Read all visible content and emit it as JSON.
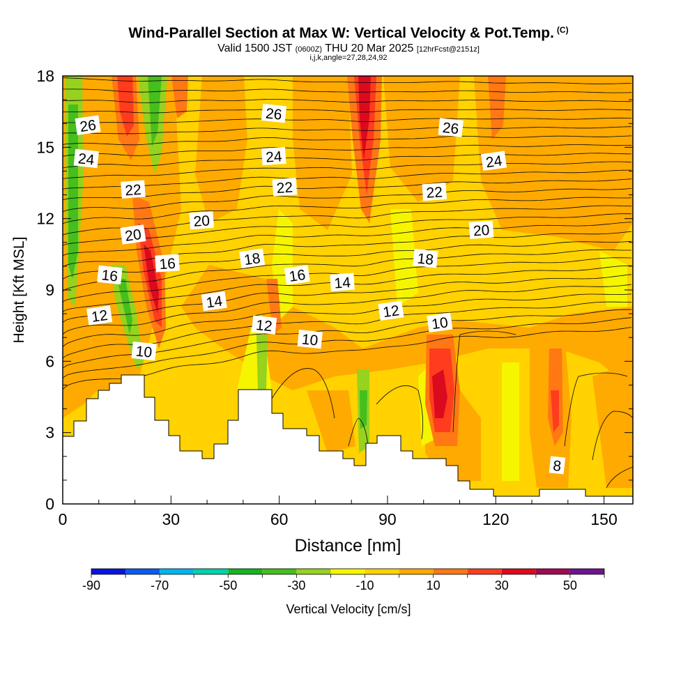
{
  "header": {
    "title": "Wind-Parallel Section at Max W: Vertical Velocity & Pot.Temp.",
    "copyright": "(C)",
    "valid_main": "Valid 1500 JST",
    "valid_zulu": "(0600Z)",
    "valid_date": "THU 20 Mar 2025",
    "valid_fcst": "[12hrFcst@2151z]",
    "subline": "i,j,k,angle=27,28,24,92"
  },
  "colors": {
    "filled_bands": [
      "#0a14dc",
      "#0a5af0",
      "#00b4f0",
      "#00d2aa",
      "#14b41e",
      "#46be1e",
      "#96d21e",
      "#f5f500",
      "#ffd200",
      "#ffaa00",
      "#ff7814",
      "#ff3c1e",
      "#dc0a1e",
      "#a00a50",
      "#6e1491"
    ],
    "terrain": "#ffffff",
    "contour": "#000000"
  },
  "chart_data": {
    "type": "heatmap",
    "xlabel": "Distance [nm]",
    "ylabel": "Height [Kft MSL]",
    "xlim": [
      0,
      158
    ],
    "ylim": [
      0,
      18
    ],
    "x_ticks": [
      0,
      30,
      60,
      90,
      120,
      150
    ],
    "y_ticks": [
      0,
      3,
      6,
      9,
      12,
      15,
      18
    ],
    "colorbar": {
      "label": "Vertical Velocity [cm/s]",
      "boundaries": [
        -90,
        -80,
        -70,
        -60,
        -50,
        -40,
        -30,
        -20,
        -10,
        0,
        10,
        20,
        30,
        40,
        50,
        60
      ],
      "tick_labels": [
        "-90",
        "-70",
        "-50",
        "-30",
        "-10",
        "10",
        "30",
        "50"
      ]
    },
    "contour_labels": [
      {
        "text": "26",
        "x": 7,
        "y": 15.9
      },
      {
        "text": "24",
        "x": 6.5,
        "y": 14.5
      },
      {
        "text": "22",
        "x": 19.5,
        "y": 13.2
      },
      {
        "text": "20",
        "x": 19.5,
        "y": 11.3
      },
      {
        "text": "16",
        "x": 13,
        "y": 9.6
      },
      {
        "text": "16",
        "x": 29,
        "y": 10.1
      },
      {
        "text": "12",
        "x": 10.2,
        "y": 7.9
      },
      {
        "text": "10",
        "x": 22.5,
        "y": 6.4
      },
      {
        "text": "20",
        "x": 38.5,
        "y": 11.9
      },
      {
        "text": "14",
        "x": 42,
        "y": 8.5
      },
      {
        "text": "26",
        "x": 58.5,
        "y": 16.4
      },
      {
        "text": "24",
        "x": 58.5,
        "y": 14.6
      },
      {
        "text": "18",
        "x": 52.5,
        "y": 10.3
      },
      {
        "text": "12",
        "x": 55.8,
        "y": 7.5
      },
      {
        "text": "22",
        "x": 61.5,
        "y": 13.3
      },
      {
        "text": "16",
        "x": 65,
        "y": 9.6
      },
      {
        "text": "10",
        "x": 68.5,
        "y": 6.9
      },
      {
        "text": "14",
        "x": 77.5,
        "y": 9.3
      },
      {
        "text": "12",
        "x": 91,
        "y": 8.1
      },
      {
        "text": "18",
        "x": 100.5,
        "y": 10.3
      },
      {
        "text": "22",
        "x": 103,
        "y": 13.1
      },
      {
        "text": "10",
        "x": 104.5,
        "y": 7.6
      },
      {
        "text": "26",
        "x": 107.5,
        "y": 15.8
      },
      {
        "text": "20",
        "x": 116,
        "y": 11.5
      },
      {
        "text": "24",
        "x": 119.5,
        "y": 14.4
      },
      {
        "text": "8",
        "x": 137,
        "y": 1.6
      }
    ]
  }
}
